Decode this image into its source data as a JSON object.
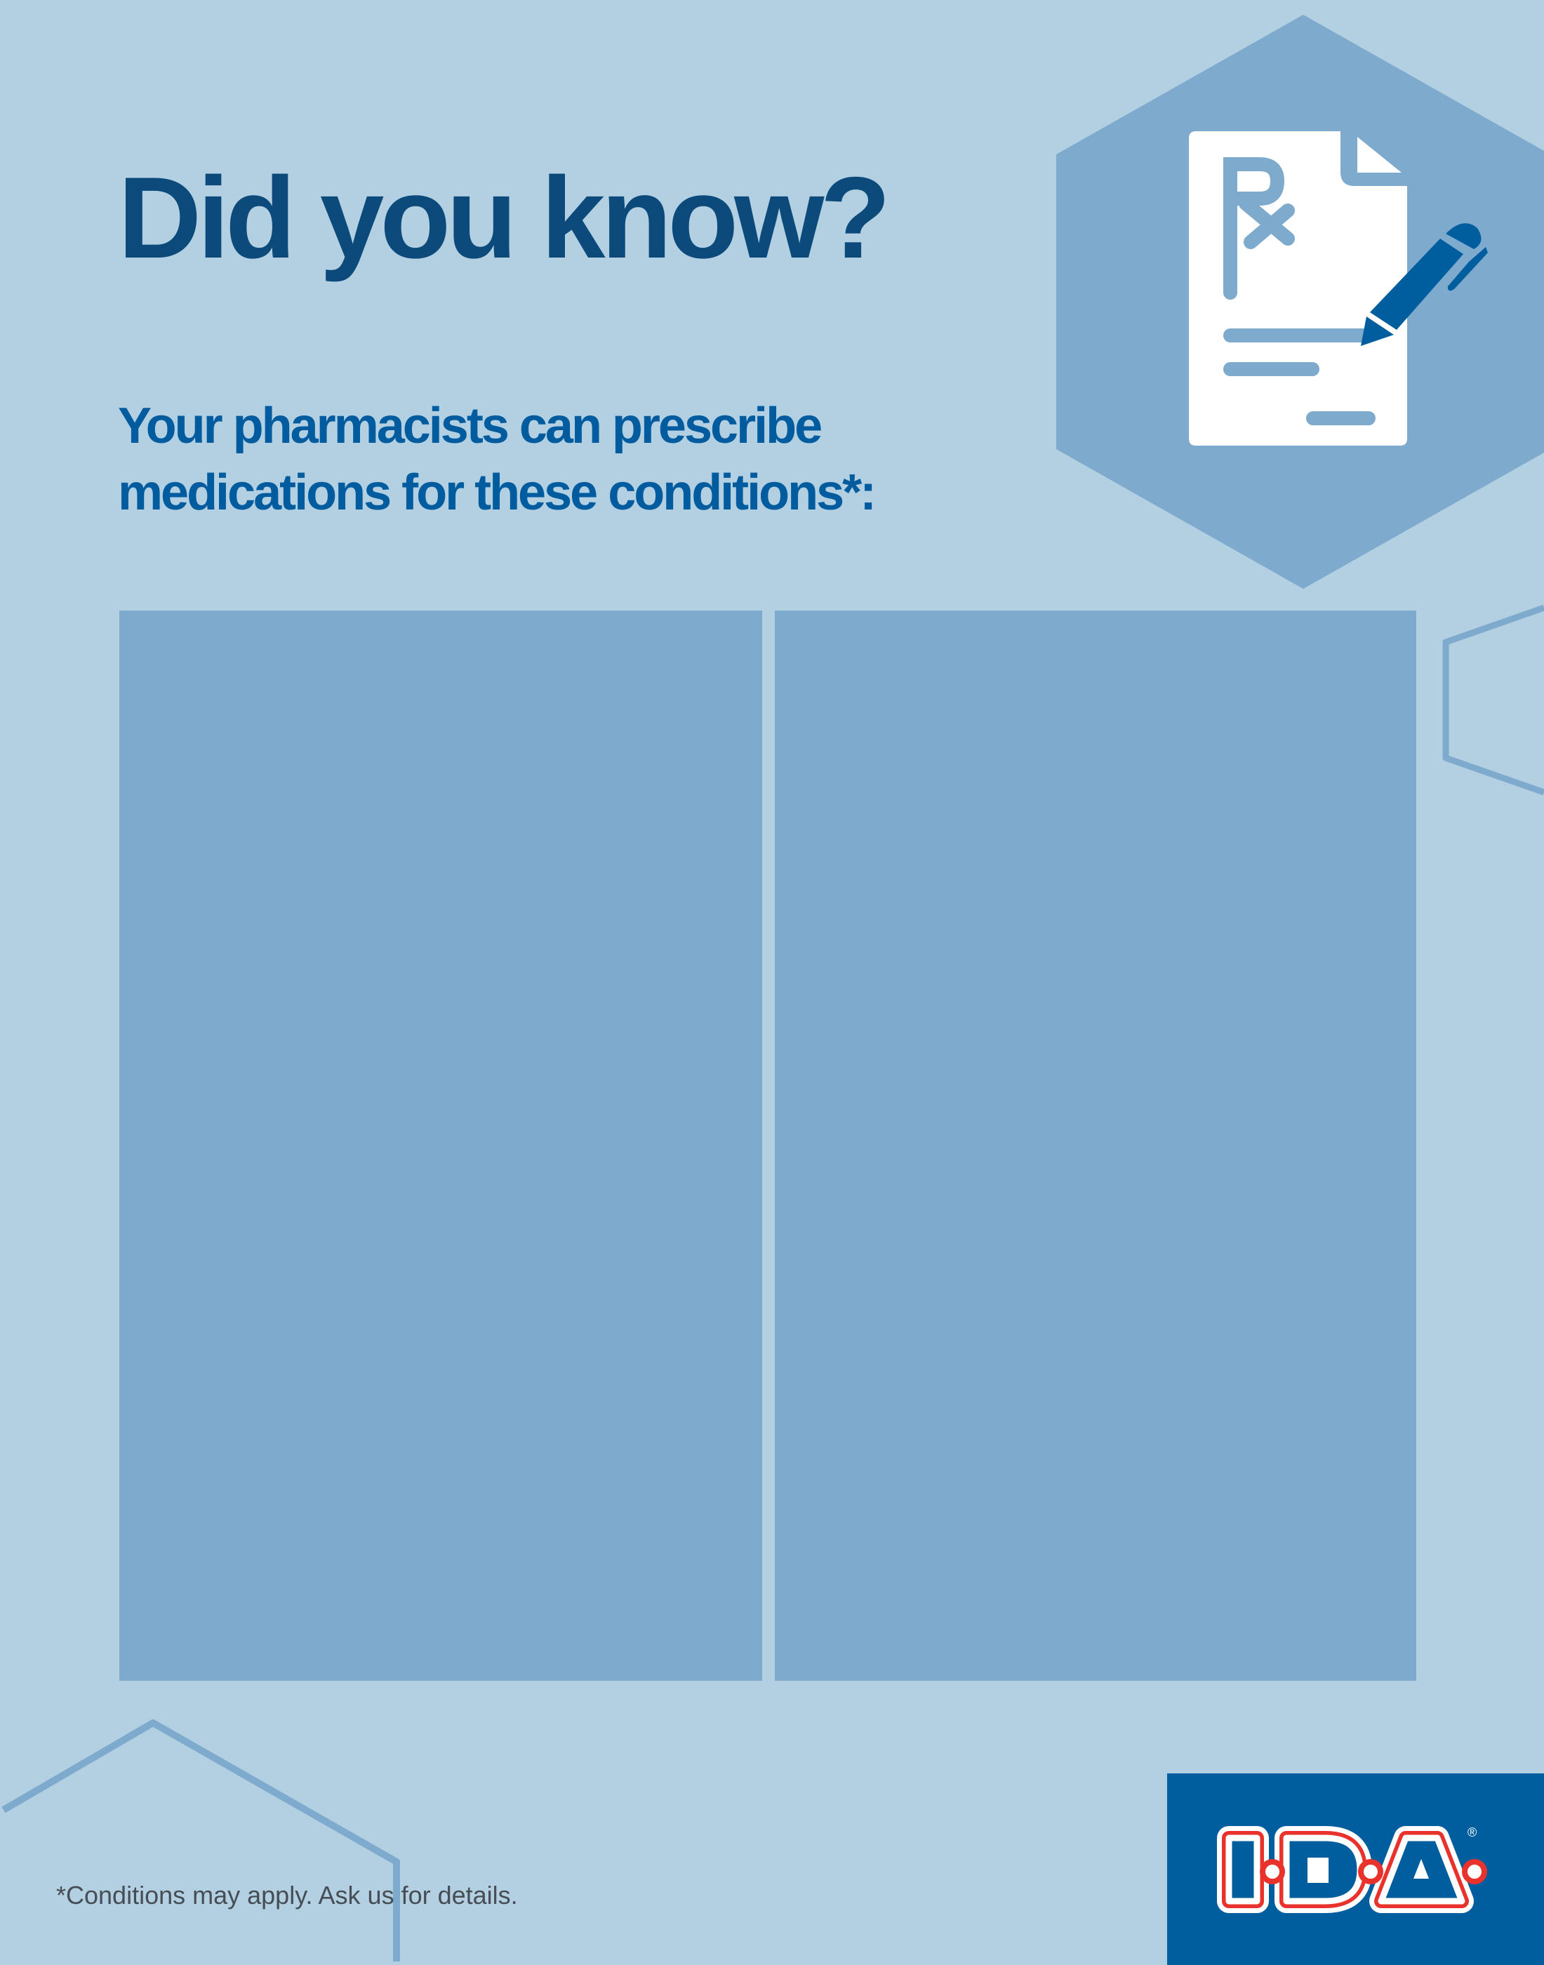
{
  "header": {
    "title": "Did you know?",
    "subtitle_line1": "Your pharmacists can prescribe",
    "subtitle_line2": "medications for these conditions*:"
  },
  "hero_icon": {
    "name": "prescription-document-with-pen-icon",
    "rx_label": "Rx"
  },
  "panels": [
    {
      "name": "left-panel"
    },
    {
      "name": "right-panel"
    }
  ],
  "footer": {
    "footnote": "*Conditions may apply. Ask us for details."
  },
  "logo": {
    "text": "I·D·A",
    "registered": "®"
  },
  "colors": {
    "background": "#b3d0e2",
    "panel": "#7daacd",
    "title": "#0b4a7a",
    "subtitle": "#005c9e",
    "brand_blue": "#005e9e",
    "brand_red": "#e8322b"
  }
}
